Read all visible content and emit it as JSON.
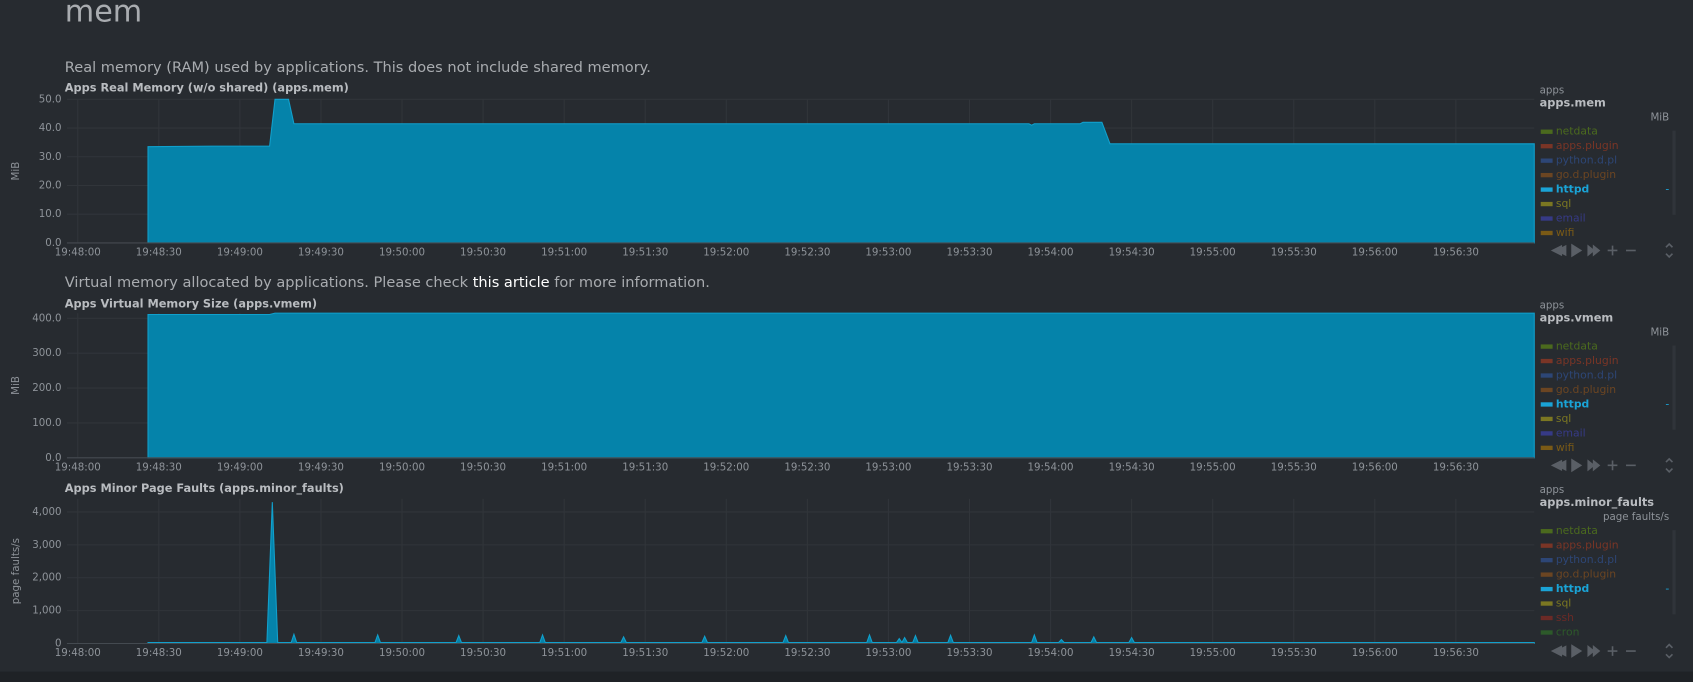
{
  "header": {
    "title": "mem"
  },
  "descriptions": [
    {
      "text": "Real memory (RAM) used by applications. This does not include shared memory."
    },
    {
      "text_before": "Virtual memory allocated by applications. Please check",
      "link": "this article",
      "text_after": "for more information."
    }
  ],
  "chart_data": [
    {
      "type": "area",
      "title": "Apps Real Memory (w/o shared) (apps.mem)",
      "y_label": "MiB",
      "family": "apps",
      "context": "apps.mem",
      "units": "MiB",
      "xlim": [
        "19:47:56",
        "19:56:59"
      ],
      "xticks": [
        "19:48:00",
        "19:48:30",
        "19:49:00",
        "19:49:30",
        "19:50:00",
        "19:50:30",
        "19:51:00",
        "19:51:30",
        "19:52:00",
        "19:52:30",
        "19:53:00",
        "19:53:30",
        "19:54:00",
        "19:54:30",
        "19:55:00",
        "19:55:30",
        "19:56:00",
        "19:56:30"
      ],
      "ylim": [
        0,
        50
      ],
      "yticks": [
        {
          "value": 0,
          "label": "0.0"
        },
        {
          "value": 10,
          "label": "10.0"
        },
        {
          "value": 20,
          "label": "20.0"
        },
        {
          "value": 30,
          "label": "30.0"
        },
        {
          "value": 40,
          "label": "40.0"
        },
        {
          "value": 50,
          "label": "50.0"
        }
      ],
      "grid": true,
      "x": [
        "19:48:26",
        "19:48:50",
        "19:49:11",
        "19:49:13",
        "19:49:18",
        "19:49:20",
        "19:53:52",
        "19:53:53",
        "19:53:54",
        "19:54:11",
        "19:54:12",
        "19:54:19",
        "19:54:22",
        "19:56:59"
      ],
      "series": [
        {
          "name": "httpd",
          "color": "#0583aa",
          "values": [
            33.5,
            33.7,
            33.7,
            50,
            50,
            41.5,
            41.5,
            41,
            41.5,
            41.5,
            42,
            42,
            34.5,
            34.5
          ]
        }
      ],
      "legend_value": "-",
      "legend_above": [
        {
          "name": "netdata",
          "color": "#4b6a1e"
        },
        {
          "name": "apps.plugin",
          "color": "#7a3526"
        },
        {
          "name": "python.d.pl",
          "color": "#2d4676"
        },
        {
          "name": "go.d.plugin",
          "color": "#6b4522"
        }
      ],
      "legend_below": [
        {
          "name": "sql",
          "color": "#7b7722"
        },
        {
          "name": "email",
          "color": "#363a86"
        },
        {
          "name": "wifi",
          "color": "#7a5a16"
        }
      ]
    },
    {
      "type": "area",
      "title": "Apps Virtual Memory Size (apps.vmem)",
      "y_label": "MiB",
      "family": "apps",
      "context": "apps.vmem",
      "units": "MiB",
      "xlim": [
        "19:47:56",
        "19:56:59"
      ],
      "xticks": [
        "19:48:00",
        "19:48:30",
        "19:49:00",
        "19:49:30",
        "19:50:00",
        "19:50:30",
        "19:51:00",
        "19:51:30",
        "19:52:00",
        "19:52:30",
        "19:53:00",
        "19:53:30",
        "19:54:00",
        "19:54:30",
        "19:55:00",
        "19:55:30",
        "19:56:00",
        "19:56:30"
      ],
      "ylim": [
        0,
        415
      ],
      "yticks": [
        {
          "value": 0,
          "label": "0.0"
        },
        {
          "value": 100,
          "label": "100.0"
        },
        {
          "value": 200,
          "label": "200.0"
        },
        {
          "value": 300,
          "label": "300.0"
        },
        {
          "value": 400,
          "label": "400.0"
        }
      ],
      "grid": true,
      "x": [
        "19:48:26",
        "19:49:11",
        "19:49:13",
        "19:56:59"
      ],
      "series": [
        {
          "name": "httpd",
          "color": "#0583aa",
          "values": [
            411,
            411,
            415,
            415
          ]
        }
      ],
      "legend_value": "-",
      "legend_above": [
        {
          "name": "netdata",
          "color": "#4b6a1e"
        },
        {
          "name": "apps.plugin",
          "color": "#7a3526"
        },
        {
          "name": "python.d.pl",
          "color": "#2d4676"
        },
        {
          "name": "go.d.plugin",
          "color": "#6b4522"
        }
      ],
      "legend_below": [
        {
          "name": "sql",
          "color": "#7b7722"
        },
        {
          "name": "email",
          "color": "#363a86"
        },
        {
          "name": "wifi",
          "color": "#7a5a16"
        }
      ]
    },
    {
      "type": "area",
      "title": "Apps Minor Page Faults (apps.minor_faults)",
      "y_label": "page faults/s",
      "family": "apps",
      "context": "apps.minor_faults",
      "units": "page faults/s",
      "xlim": [
        "19:47:56",
        "19:56:59"
      ],
      "xticks": [
        "19:48:00",
        "19:48:30",
        "19:49:00",
        "19:49:30",
        "19:50:00",
        "19:50:30",
        "19:51:00",
        "19:51:30",
        "19:52:00",
        "19:52:30",
        "19:53:00",
        "19:53:30",
        "19:54:00",
        "19:54:30",
        "19:55:00",
        "19:55:30",
        "19:56:00",
        "19:56:30"
      ],
      "ylim": [
        0,
        4400
      ],
      "yticks": [
        0,
        {
          "value": 1000,
          "label": "1,000"
        },
        {
          "value": 2000,
          "label": "2,000"
        },
        {
          "value": 3000,
          "label": "3,000"
        },
        {
          "value": 4000,
          "label": "4,000"
        }
      ],
      "grid": true,
      "x": [
        "19:48:26",
        "19:49:10",
        "19:49:12",
        "19:49:14",
        "19:49:19",
        "19:49:20",
        "19:49:21",
        "19:49:50",
        "19:49:51",
        "19:49:52",
        "19:50:20",
        "19:50:21",
        "19:50:22",
        "19:50:51",
        "19:50:52",
        "19:50:53",
        "19:51:21",
        "19:51:22",
        "19:51:23",
        "19:51:51",
        "19:51:52",
        "19:51:53",
        "19:52:21",
        "19:52:22",
        "19:52:23",
        "19:52:52",
        "19:52:53",
        "19:52:54",
        "19:53:03",
        "19:53:04",
        "19:53:05",
        "19:53:06",
        "19:53:07",
        "19:53:09",
        "19:53:10",
        "19:53:11",
        "19:53:22",
        "19:53:23",
        "19:53:24",
        "19:53:53",
        "19:53:54",
        "19:53:55",
        "19:54:03",
        "19:54:04",
        "19:54:05",
        "19:54:15",
        "19:54:16",
        "19:54:17",
        "19:54:29",
        "19:54:30",
        "19:54:31",
        "19:56:59"
      ],
      "series": [
        {
          "name": "httpd",
          "color": "#0583aa",
          "values": [
            30,
            30,
            4300,
            30,
            30,
            280,
            30,
            30,
            260,
            30,
            30,
            240,
            30,
            30,
            260,
            30,
            30,
            200,
            30,
            30,
            220,
            30,
            30,
            240,
            30,
            30,
            260,
            30,
            30,
            150,
            30,
            180,
            30,
            30,
            240,
            30,
            30,
            250,
            30,
            30,
            260,
            30,
            30,
            120,
            30,
            30,
            200,
            30,
            30,
            180,
            30,
            30
          ]
        }
      ],
      "legend_value": "-",
      "legend_above": [
        {
          "name": "netdata",
          "color": "#4b6a1e"
        },
        {
          "name": "apps.plugin",
          "color": "#7a3526"
        },
        {
          "name": "python.d.pl",
          "color": "#2d4676"
        },
        {
          "name": "go.d.plugin",
          "color": "#6b4522"
        }
      ],
      "legend_below": [
        {
          "name": "sql",
          "color": "#7b7722"
        },
        {
          "name": "ssh",
          "color": "#6b2a26"
        },
        {
          "name": "cron",
          "color": "#2d5a2a"
        }
      ]
    }
  ]
}
